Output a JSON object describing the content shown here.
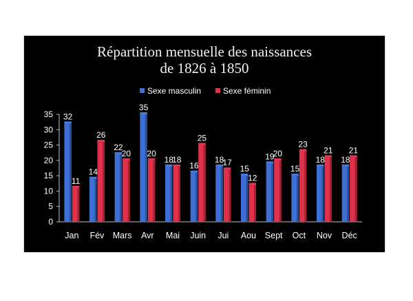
{
  "chart_data": {
    "type": "bar",
    "title_lines": [
      "Répartition mensuelle des naissances",
      "de 1826 à 1850"
    ],
    "categories": [
      "Jan",
      "Fév",
      "Mars",
      "Avr",
      "Mai",
      "Juin",
      "Jui",
      "Aou",
      "Sept",
      "Oct",
      "Nov",
      "Déc"
    ],
    "series": [
      {
        "name": "Sexe masculin",
        "color": "#3d6fd6",
        "values": [
          32,
          14,
          22,
          35,
          18,
          16,
          18,
          15,
          19,
          15,
          18,
          18
        ]
      },
      {
        "name": "Sexe féminin",
        "color": "#e0304a",
        "values": [
          11,
          26,
          20,
          20,
          18,
          25,
          17,
          12,
          20,
          23,
          21,
          21
        ]
      }
    ],
    "ylim": [
      0,
      35
    ],
    "yticks": [
      0,
      5,
      10,
      15,
      20,
      25,
      30,
      35
    ],
    "grid": false,
    "legend_position": "top"
  }
}
